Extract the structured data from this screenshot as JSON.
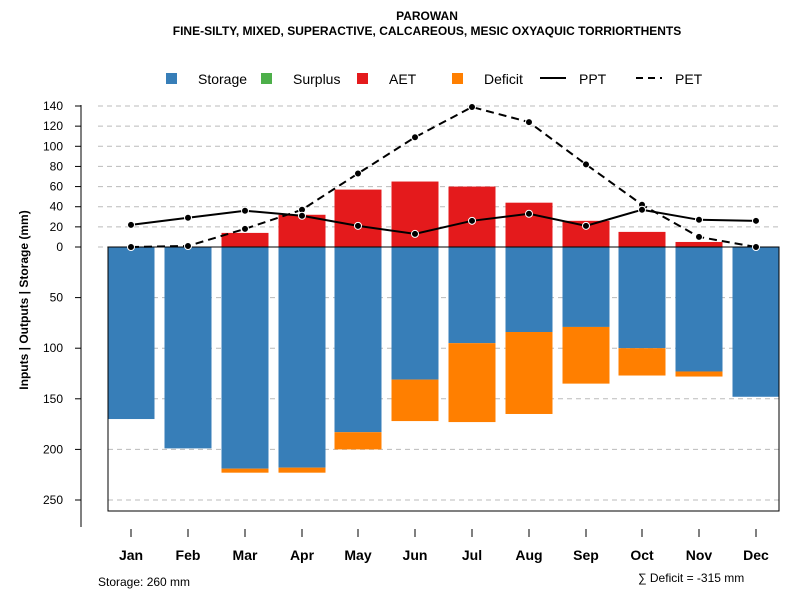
{
  "chart_data": {
    "type": "bar",
    "title": "PAROWAN",
    "subtitle": "FINE-SILTY, MIXED, SUPERACTIVE, CALCAREOUS, MESIC OXYAQUIC TORRIORTHENTS",
    "ylabel": "Inputs | Outputs | Storage     (mm)",
    "categories": [
      "Jan",
      "Feb",
      "Mar",
      "Apr",
      "May",
      "Jun",
      "Jul",
      "Aug",
      "Sep",
      "Oct",
      "Nov",
      "Dec"
    ],
    "yticks_up": [
      "0",
      "20",
      "40",
      "60",
      "80",
      "100",
      "120",
      "140"
    ],
    "yticks_down": [
      "50",
      "100",
      "150",
      "200",
      "250"
    ],
    "legend": [
      "Storage",
      "Surplus",
      "AET",
      "Deficit",
      "PPT",
      "PET"
    ],
    "series": [
      {
        "name": "Storage",
        "values": [
          170,
          199,
          219,
          218,
          183,
          131,
          95,
          84,
          79,
          100,
          123,
          148
        ],
        "color": "#377eb8"
      },
      {
        "name": "Surplus",
        "values": [
          0,
          0,
          0,
          0,
          0,
          0,
          0,
          0,
          0,
          0,
          0,
          0
        ],
        "color": "#4daf4a"
      },
      {
        "name": "AET",
        "values": [
          0,
          0,
          14,
          32,
          57,
          65,
          60,
          44,
          26,
          15,
          5,
          0
        ],
        "color": "#e41a1c"
      },
      {
        "name": "Deficit",
        "values": [
          0,
          0,
          4,
          5,
          17,
          41,
          78,
          81,
          56,
          27,
          5,
          0
        ],
        "color": "#ff7f00"
      },
      {
        "name": "PPT",
        "values": [
          22,
          29,
          36,
          31,
          21,
          13,
          26,
          33,
          21,
          37,
          27,
          26
        ],
        "color": "#000000"
      },
      {
        "name": "PET",
        "values": [
          0,
          1,
          18,
          37,
          73,
          109,
          139,
          124,
          82,
          42,
          10,
          0
        ],
        "color": "#000000"
      }
    ],
    "storage_note": "Storage: 260 mm",
    "deficit_note": "∑ Deficit = -315 mm"
  }
}
